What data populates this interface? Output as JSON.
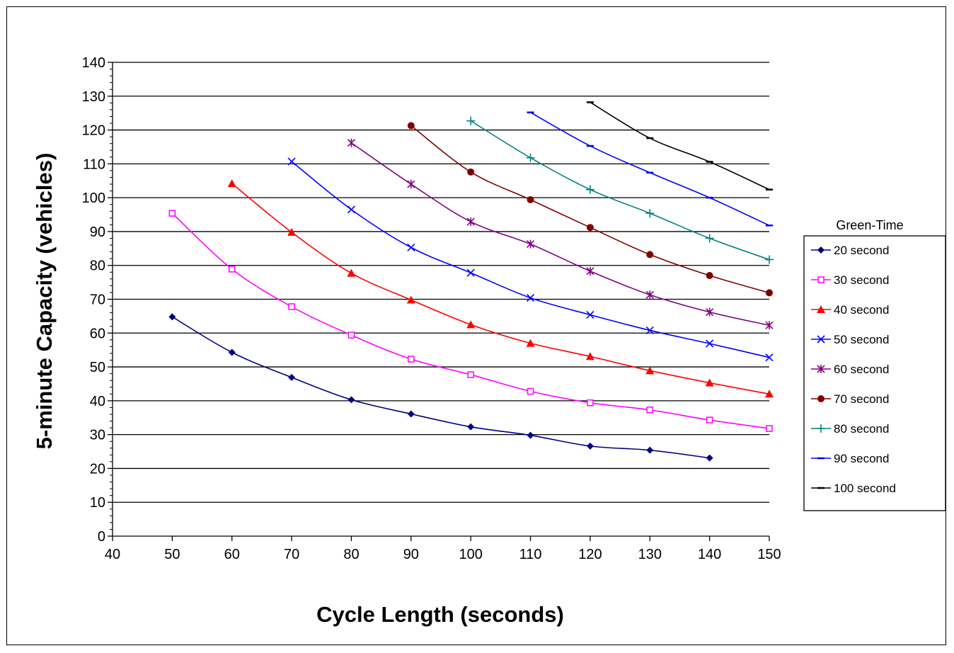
{
  "chart_data": {
    "type": "line",
    "title": "",
    "xlabel": "Cycle Length (seconds)",
    "ylabel": "5-minute Capacity (vehicles)",
    "xlim": [
      40,
      150
    ],
    "ylim": [
      0,
      140
    ],
    "x_ticks": [
      40,
      50,
      60,
      70,
      80,
      90,
      100,
      110,
      120,
      130,
      140,
      150
    ],
    "y_ticks": [
      0,
      10,
      20,
      30,
      40,
      50,
      60,
      70,
      80,
      90,
      100,
      110,
      120,
      130,
      140
    ],
    "grid": "horizontal major",
    "legend": {
      "title": "Green-Time",
      "placement": "right"
    },
    "series": [
      {
        "name": "20 second",
        "color": "#000080",
        "marker": "diamond",
        "x": [
          50,
          60,
          70,
          80,
          90,
          100,
          110,
          120,
          130,
          140
        ],
        "y": [
          64.8,
          54.3,
          46.9,
          40.3,
          36.1,
          32.3,
          29.8,
          26.6,
          25.4,
          23.1
        ]
      },
      {
        "name": "30 second",
        "color": "#ff00ff",
        "marker": "square",
        "x": [
          50,
          60,
          70,
          80,
          90,
          100,
          110,
          120,
          130,
          140,
          150
        ],
        "y": [
          95.4,
          78.9,
          67.8,
          59.4,
          52.3,
          47.7,
          42.8,
          39.4,
          37.3,
          34.3,
          31.8
        ]
      },
      {
        "name": "40 second",
        "color": "#ff0000",
        "marker": "triangle",
        "x": [
          60,
          70,
          80,
          90,
          100,
          110,
          120,
          130,
          140,
          150
        ],
        "y": [
          104.2,
          89.8,
          77.7,
          69.8,
          62.5,
          57.0,
          53.1,
          48.9,
          45.3,
          42.0
        ]
      },
      {
        "name": "50 second",
        "color": "#0000ff",
        "marker": "x",
        "x": [
          70,
          80,
          90,
          100,
          110,
          120,
          130,
          140,
          150
        ],
        "y": [
          110.7,
          96.5,
          85.3,
          77.8,
          70.4,
          65.4,
          60.8,
          56.9,
          52.8
        ]
      },
      {
        "name": "60 second",
        "color": "#800080",
        "marker": "star",
        "x": [
          80,
          90,
          100,
          110,
          120,
          130,
          140,
          150
        ],
        "y": [
          116.2,
          104.0,
          92.9,
          86.3,
          78.3,
          71.3,
          66.2,
          62.3
        ]
      },
      {
        "name": "70 second",
        "color": "#800000",
        "marker": "circle",
        "x": [
          90,
          100,
          110,
          120,
          130,
          140,
          150
        ],
        "y": [
          121.3,
          107.6,
          99.4,
          91.2,
          83.2,
          77.0,
          71.9
        ]
      },
      {
        "name": "80 second",
        "color": "#008080",
        "marker": "plus",
        "x": [
          100,
          110,
          120,
          130,
          140,
          150
        ],
        "y": [
          122.7,
          111.8,
          102.4,
          95.4,
          88.0,
          81.7
        ]
      },
      {
        "name": "90 second",
        "color": "#0000ff",
        "marker": "dash",
        "x": [
          110,
          120,
          130,
          140,
          150
        ],
        "y": [
          125.2,
          115.3,
          107.4,
          100.0,
          91.8
        ]
      },
      {
        "name": "100 second",
        "color": "#000000",
        "marker": "dash",
        "x": [
          120,
          130,
          140,
          150
        ],
        "y": [
          128.2,
          117.6,
          110.6,
          102.4
        ]
      }
    ]
  }
}
